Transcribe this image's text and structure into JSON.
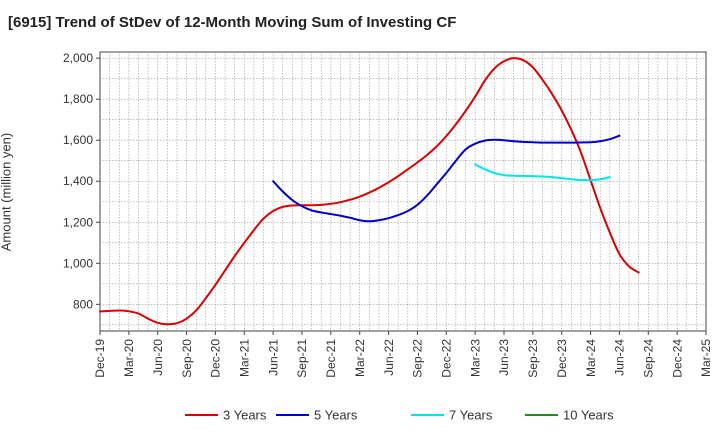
{
  "chart_data": {
    "type": "line",
    "title": "[6915]  Trend of StDev of 12-Month Moving Sum of Investing CF",
    "ylabel": "Amount (million yen)",
    "xlabel": "",
    "ylim": [
      670,
      2030
    ],
    "yticks": [
      800,
      1000,
      1200,
      1400,
      1600,
      1800,
      2000
    ],
    "ytick_labels": [
      "800",
      "1,000",
      "1,200",
      "1,400",
      "1,600",
      "1,800",
      "2,000"
    ],
    "x_tick_labels": [
      "Dec-19",
      "Mar-20",
      "Jun-20",
      "Sep-20",
      "Dec-20",
      "Mar-21",
      "Jun-21",
      "Sep-21",
      "Dec-21",
      "Mar-22",
      "Jun-22",
      "Sep-22",
      "Dec-22",
      "Mar-23",
      "Jun-23",
      "Sep-23",
      "Dec-23",
      "Mar-24",
      "Jun-24",
      "Sep-24",
      "Dec-24",
      "Mar-25"
    ],
    "grid": true,
    "legend_position": "bottom",
    "series": [
      {
        "name": "3 Years",
        "color": "#dd0000",
        "values": [
          [
            0,
            765
          ],
          [
            1,
            768
          ],
          [
            2,
            770
          ],
          [
            3,
            766
          ],
          [
            4,
            755
          ],
          [
            5,
            730
          ],
          [
            6,
            710
          ],
          [
            7,
            703
          ],
          [
            8,
            708
          ],
          [
            9,
            730
          ],
          [
            10,
            770
          ],
          [
            11,
            830
          ],
          [
            12,
            895
          ],
          [
            13,
            965
          ],
          [
            14,
            1035
          ],
          [
            15,
            1100
          ],
          [
            16,
            1162
          ],
          [
            17,
            1218
          ],
          [
            18,
            1255
          ],
          [
            19,
            1275
          ],
          [
            20,
            1282
          ],
          [
            21,
            1283
          ],
          [
            22,
            1283
          ],
          [
            23,
            1285
          ],
          [
            24,
            1290
          ],
          [
            25,
            1298
          ],
          [
            26,
            1310
          ],
          [
            27,
            1325
          ],
          [
            28,
            1345
          ],
          [
            29,
            1368
          ],
          [
            30,
            1395
          ],
          [
            31,
            1425
          ],
          [
            32,
            1458
          ],
          [
            33,
            1492
          ],
          [
            34,
            1528
          ],
          [
            35,
            1570
          ],
          [
            36,
            1620
          ],
          [
            37,
            1678
          ],
          [
            38,
            1742
          ],
          [
            39,
            1812
          ],
          [
            40,
            1890
          ],
          [
            41,
            1950
          ],
          [
            42,
            1985
          ],
          [
            43,
            2000
          ],
          [
            44,
            1990
          ],
          [
            45,
            1955
          ],
          [
            46,
            1895
          ],
          [
            47,
            1825
          ],
          [
            48,
            1745
          ],
          [
            49,
            1650
          ],
          [
            50,
            1540
          ],
          [
            51,
            1405
          ],
          [
            52,
            1270
          ],
          [
            53,
            1150
          ],
          [
            54,
            1045
          ],
          [
            55,
            985
          ],
          [
            56,
            955
          ]
        ]
      },
      {
        "name": "5 Years",
        "color": "#0000cc",
        "values": [
          [
            18,
            1400
          ],
          [
            19,
            1350
          ],
          [
            20,
            1308
          ],
          [
            21,
            1278
          ],
          [
            22,
            1258
          ],
          [
            23,
            1248
          ],
          [
            24,
            1240
          ],
          [
            25,
            1232
          ],
          [
            26,
            1222
          ],
          [
            27,
            1210
          ],
          [
            28,
            1205
          ],
          [
            29,
            1210
          ],
          [
            30,
            1220
          ],
          [
            31,
            1235
          ],
          [
            32,
            1255
          ],
          [
            33,
            1285
          ],
          [
            34,
            1330
          ],
          [
            35,
            1385
          ],
          [
            36,
            1440
          ],
          [
            37,
            1500
          ],
          [
            38,
            1555
          ],
          [
            39,
            1583
          ],
          [
            40,
            1598
          ],
          [
            41,
            1602
          ],
          [
            42,
            1600
          ],
          [
            43,
            1595
          ],
          [
            44,
            1592
          ],
          [
            45,
            1590
          ],
          [
            46,
            1588
          ],
          [
            47,
            1588
          ],
          [
            48,
            1588
          ],
          [
            49,
            1588
          ],
          [
            50,
            1589
          ],
          [
            51,
            1590
          ],
          [
            52,
            1595
          ],
          [
            53,
            1605
          ],
          [
            54,
            1622
          ]
        ]
      },
      {
        "name": "7 Years",
        "color": "#00e5ee",
        "values": [
          [
            39,
            1482
          ],
          [
            40,
            1458
          ],
          [
            41,
            1440
          ],
          [
            42,
            1430
          ],
          [
            43,
            1427
          ],
          [
            44,
            1426
          ],
          [
            45,
            1425
          ],
          [
            46,
            1423
          ],
          [
            47,
            1420
          ],
          [
            48,
            1415
          ],
          [
            49,
            1410
          ],
          [
            50,
            1406
          ],
          [
            51,
            1405
          ],
          [
            52,
            1410
          ],
          [
            53,
            1420
          ]
        ]
      },
      {
        "name": "10 Years",
        "color": "#228b22",
        "values": []
      }
    ]
  }
}
